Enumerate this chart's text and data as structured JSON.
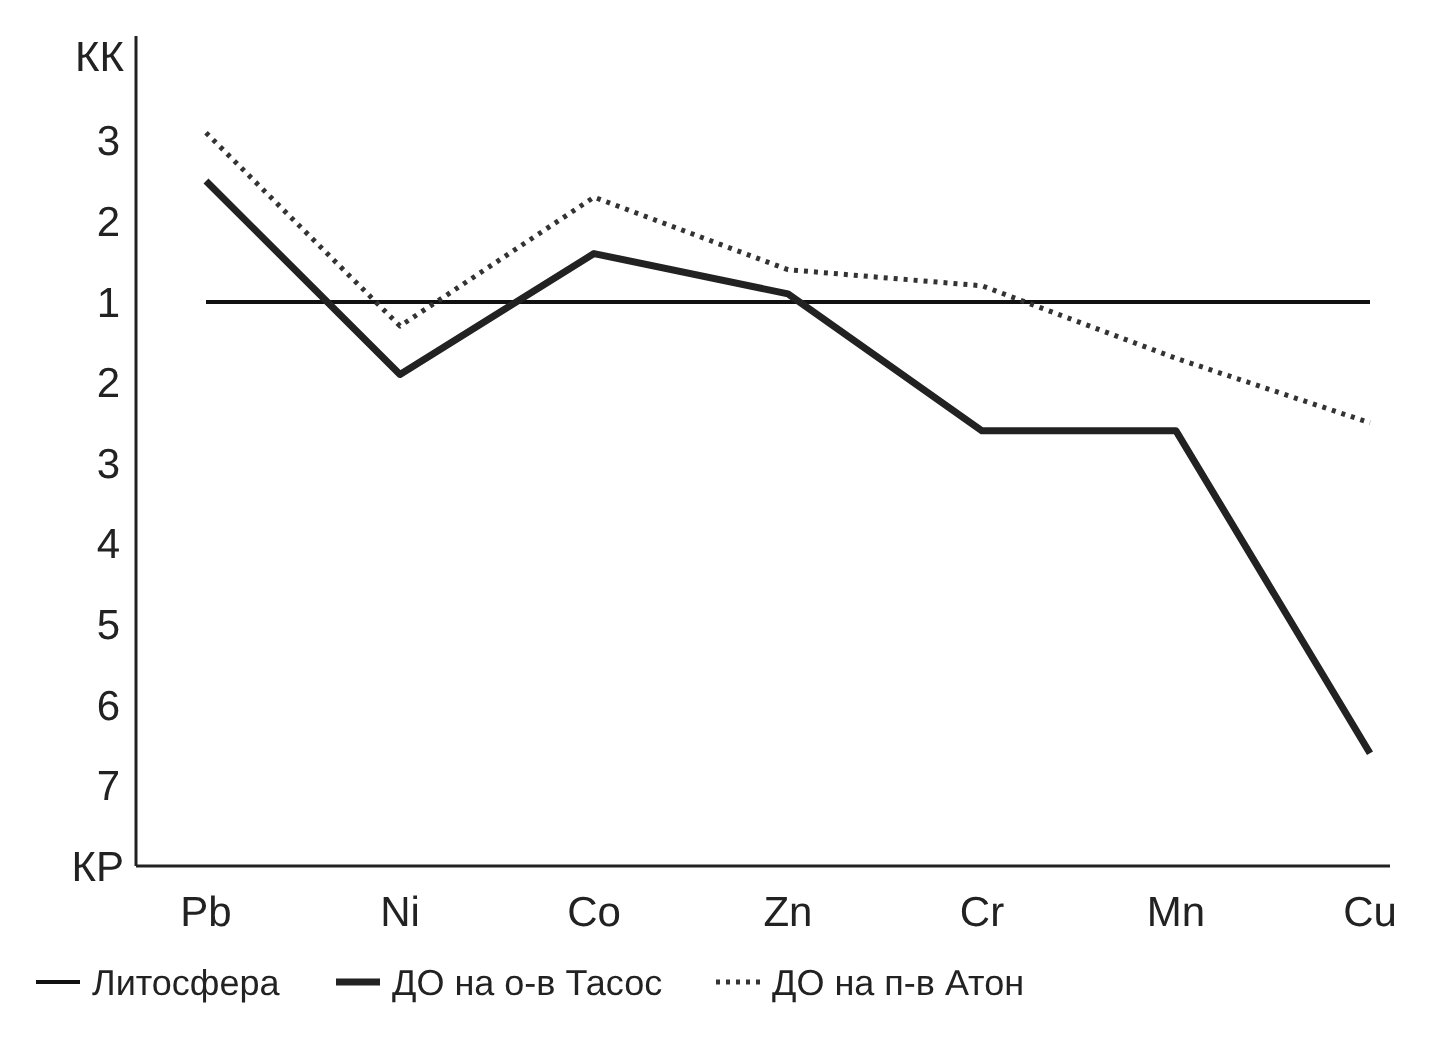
{
  "chart_data": {
    "type": "line",
    "categories": [
      "Pb",
      "Ni",
      "Co",
      "Zn",
      "Cr",
      "Mn",
      "Cu"
    ],
    "ylim": [
      -6,
      4.3
    ],
    "yticks": [
      3,
      2,
      1
    ],
    "y2lim": [
      8,
      -2.3
    ],
    "y2ticks": [
      2,
      3,
      4,
      5,
      6,
      7
    ],
    "annotations": [
      "КК",
      "КР"
    ],
    "series": [
      {
        "name": "Литосфера",
        "color": "#111111",
        "line_style": "solid",
        "values": [
          1,
          1,
          1,
          1,
          1,
          1,
          1
        ]
      },
      {
        "name": "ДО на о-в Тасос",
        "color": "#222222",
        "line_style": "solid",
        "values": [
          2.5,
          0.1,
          1.6,
          1.1,
          -0.6,
          -0.6,
          -4.6
        ]
      },
      {
        "name": "ДО на п-в Атон",
        "color": "#333333",
        "line_style": "dotted",
        "values": [
          3.1,
          0.7,
          2.3,
          1.4,
          1.2,
          0.3,
          -0.5
        ]
      }
    ],
    "grid": false,
    "legend": "bottom",
    "marker": "none"
  }
}
